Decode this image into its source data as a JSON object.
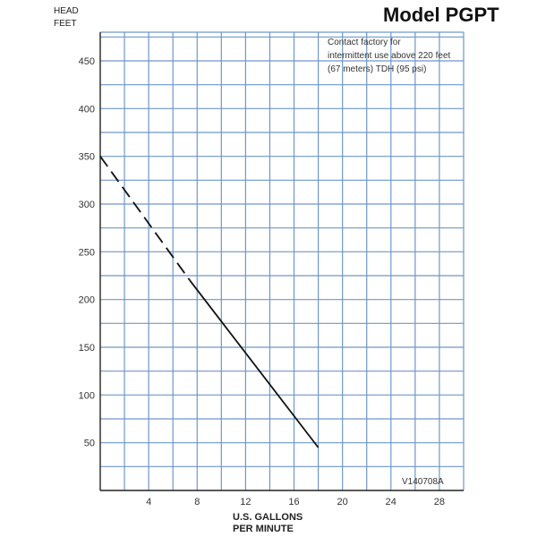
{
  "header": {
    "model_title": "Model PGPT",
    "y_axis_label_line1": "HEAD",
    "y_axis_label_line2": "FEET"
  },
  "annotation": {
    "line1": "Contact factory for",
    "line2": "intermittent use above 220 feet",
    "line3": "(67 meters) TDH (95 psi)"
  },
  "code_label": "V140708A",
  "x_axis": {
    "label_line1": "U.S. GALLONS",
    "label_line2": "PER MINUTE"
  },
  "colors": {
    "grid": "#6f97c8",
    "axis": "#222222",
    "curve": "#111111"
  },
  "chart_data": {
    "type": "line",
    "xlabel": "U.S. GALLONS PER MINUTE",
    "ylabel": "HEAD FEET",
    "xlim": [
      0,
      30
    ],
    "ylim": [
      0,
      480
    ],
    "x_ticks": [
      4,
      8,
      12,
      16,
      20,
      24,
      28
    ],
    "y_ticks": [
      50,
      100,
      150,
      200,
      250,
      300,
      350,
      400,
      450
    ],
    "x_grid_step": 2,
    "y_grid_step": 25,
    "grid": true,
    "series": [
      {
        "style": "dashed",
        "x": [
          0,
          7.4
        ],
        "y": [
          350,
          220
        ]
      },
      {
        "style": "solid",
        "x": [
          7.4,
          18
        ],
        "y": [
          220,
          45
        ]
      }
    ]
  }
}
